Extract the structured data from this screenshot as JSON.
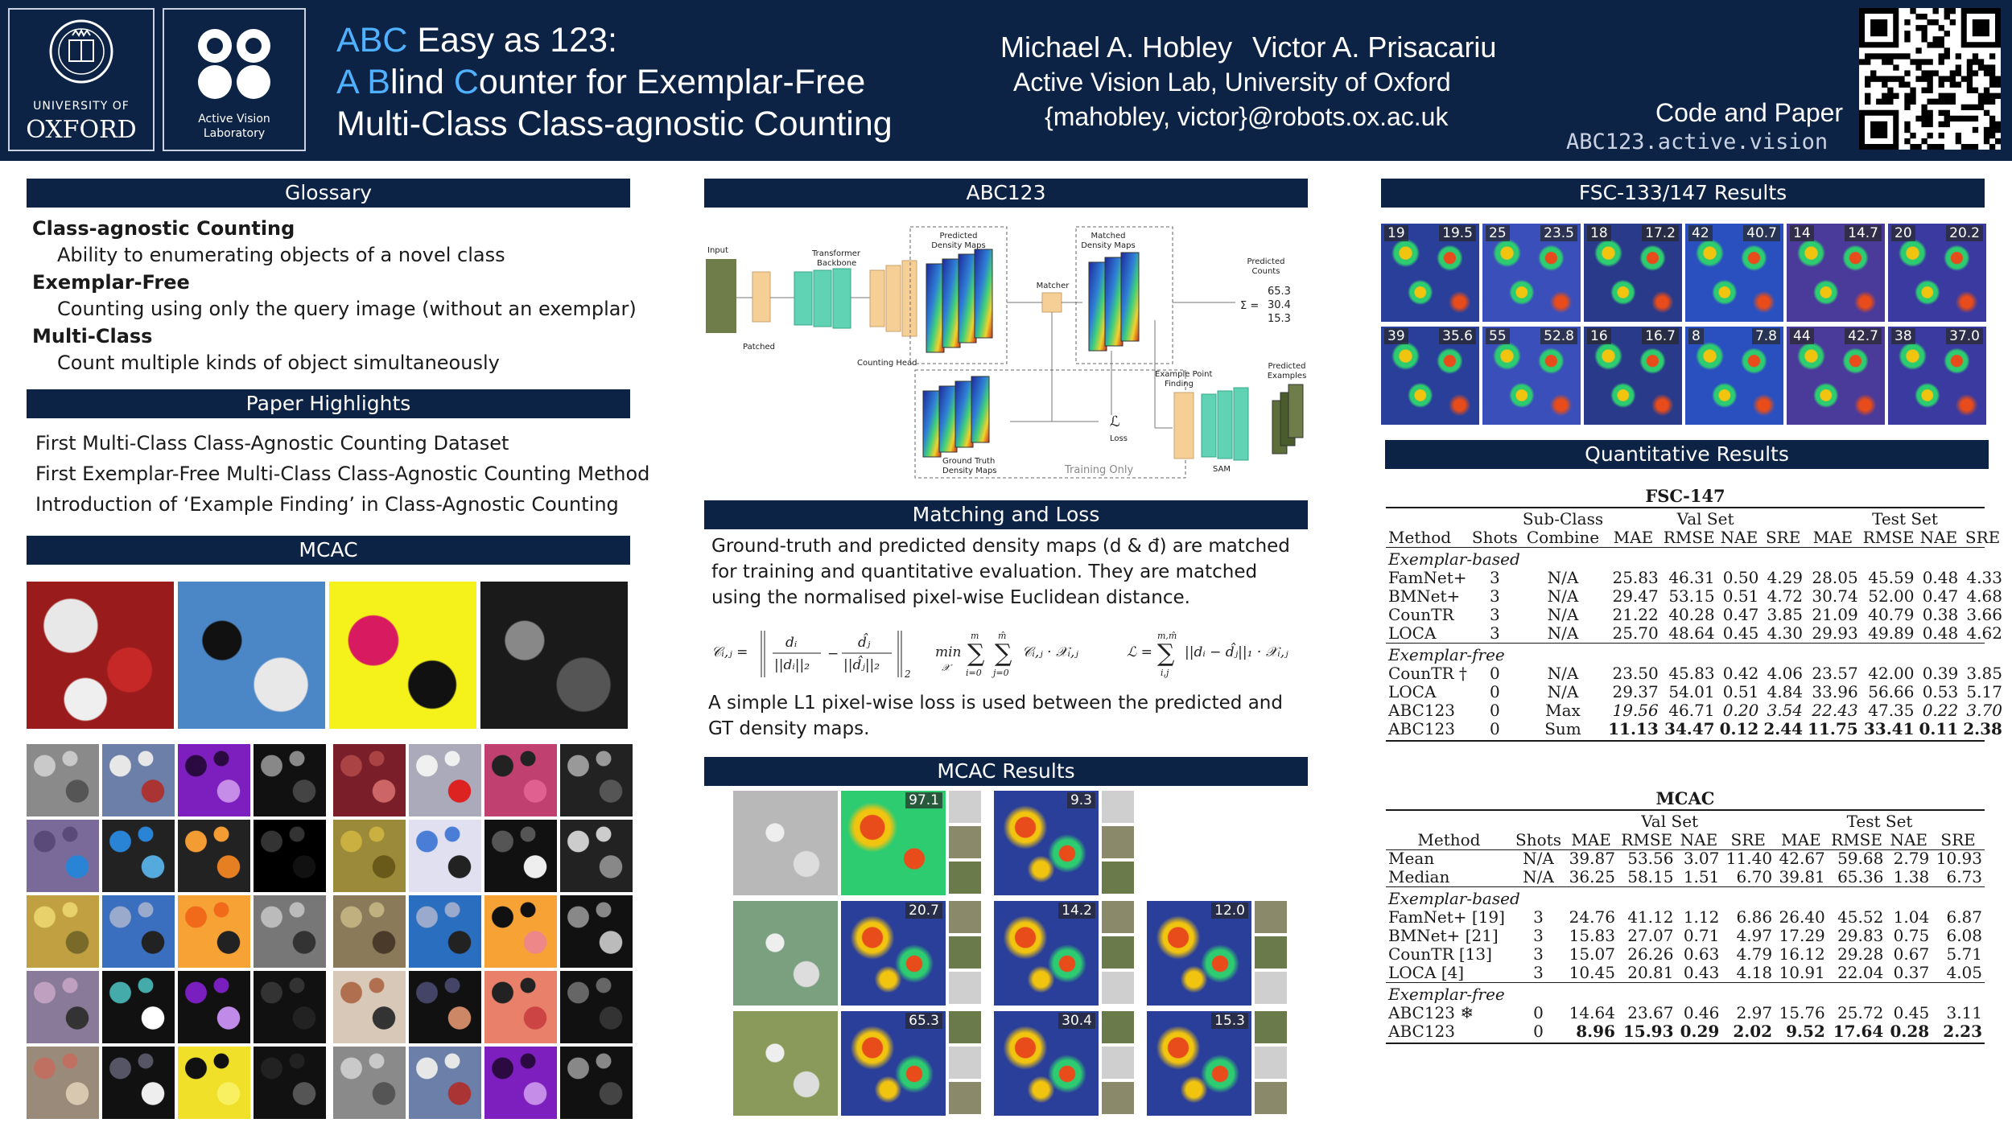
{
  "header": {
    "oxford_small": "UNIVERSITY OF",
    "oxford_big": "OXFORD",
    "avl_line1": "Active Vision",
    "avl_line2": "Laboratory",
    "title_l1_a": "ABC",
    "title_l1_b": " Easy as 123:",
    "title_l2_a": "A",
    "title_l2_b": " B",
    "title_l2_c": "lind ",
    "title_l2_d": "C",
    "title_l2_e": "ounter for Exemplar-Free",
    "title_l3": "Multi-Class Class-agnostic Counting",
    "author1": "Michael A. Hobley",
    "author2": "Victor A. Prisacariu",
    "affiliation": "Active Vision Lab, University of Oxford",
    "email": "{mahobley, victor}@robots.ox.ac.uk",
    "code_label": "Code and Paper",
    "url": "ABC123.active.vision"
  },
  "glossary": {
    "title": "Glossary",
    "items": [
      {
        "term": "Class-agnostic Counting",
        "def": "Ability to enumerating objects of a novel class"
      },
      {
        "term": "Exemplar-Free",
        "def": "Counting using only the query image (without an exemplar)"
      },
      {
        "term": "Multi-Class",
        "def": "Count multiple kinds of object simultaneously"
      }
    ]
  },
  "highlights": {
    "title": "Paper Highlights",
    "items": [
      "First Multi-Class Class-Agnostic Counting Dataset",
      "First Exemplar-Free Multi-Class Class-Agnostic Counting Method",
      "Introduction of ‘Example Finding’ in Class-Agnostic Counting"
    ]
  },
  "mcac": {
    "title": "MCAC"
  },
  "abc123": {
    "title": "ABC123",
    "diagram": {
      "input": "Input",
      "patched": "Patched",
      "transformer": "Transformer",
      "backbone": "Backbone",
      "counting_head": "Counting Head",
      "pred_maps_1": "Predicted",
      "pred_maps_2": "Density Maps",
      "matcher": "Matcher",
      "matched_1": "Matched",
      "matched_2": "Density Maps",
      "pred_counts_1": "Predicted",
      "pred_counts_2": "Counts",
      "counts": [
        "65.3",
        "30.4",
        "15.3"
      ],
      "sigma": "Σ =",
      "loss_sym": "ℒ",
      "loss": "Loss",
      "gt_1": "Ground Truth",
      "gt_2": "Density Maps",
      "training_only": "Training Only",
      "example_finding_1": "Example Point",
      "example_finding_2": "Finding",
      "sam": "SAM",
      "pred_examples_1": "Predicted",
      "pred_examples_2": "Examples"
    }
  },
  "matching": {
    "title": "Matching and Loss",
    "para1": "Ground-truth and predicted density maps (d & đ) are matched for training and quantitative evaluation. They are matched using the normalised pixel-wise Euclidean distance.",
    "para2": "A simple L1 pixel-wise loss is used between the predicted and GT density maps."
  },
  "mcac_results": {
    "title": "MCAC Results",
    "rows": [
      [
        "97.1",
        "9.3"
      ],
      [
        "20.7",
        "14.2",
        "12.0"
      ],
      [
        "65.3",
        "30.4",
        "15.3"
      ]
    ]
  },
  "fsc_results": {
    "title": "FSC-133/147 Results",
    "tiles": [
      {
        "gt": "19",
        "pred": "19.5"
      },
      {
        "gt": "25",
        "pred": "23.5"
      },
      {
        "gt": "18",
        "pred": "17.2"
      },
      {
        "gt": "42",
        "pred": "40.7"
      },
      {
        "gt": "14",
        "pred": "14.7"
      },
      {
        "gt": "20",
        "pred": "20.2"
      },
      {
        "gt": "39",
        "pred": "35.6"
      },
      {
        "gt": "55",
        "pred": "52.8"
      },
      {
        "gt": "16",
        "pred": "16.7"
      },
      {
        "gt": "8",
        "pred": "7.8"
      },
      {
        "gt": "44",
        "pred": "42.7"
      },
      {
        "gt": "38",
        "pred": "37.0"
      }
    ]
  },
  "quant": {
    "title": "Quantitative Results",
    "fsc": {
      "caption": "FSC-147",
      "h_subclass1": "Sub-Class",
      "h_subclass2": "Combine",
      "val": "Val Set",
      "test": "Test Set",
      "cols": [
        "Method",
        "Shots",
        "Combine",
        "MAE",
        "RMSE",
        "NAE",
        "SRE",
        "MAE",
        "RMSE",
        "NAE",
        "SRE"
      ],
      "group1": "Exemplar-based",
      "rows1": [
        [
          "FamNet+",
          "3",
          "N/A",
          "25.83",
          "46.31",
          "0.50",
          "4.29",
          "28.05",
          "45.59",
          "0.48",
          "4.33"
        ],
        [
          "BMNet+",
          "3",
          "N/A",
          "29.47",
          "53.15",
          "0.51",
          "4.72",
          "30.74",
          "52.00",
          "0.47",
          "4.68"
        ],
        [
          "CounTR",
          "3",
          "N/A",
          "21.22",
          "40.28",
          "0.47",
          "3.85",
          "21.09",
          "40.79",
          "0.38",
          "3.66"
        ],
        [
          "LOCA",
          "3",
          "N/A",
          "25.70",
          "48.64",
          "0.45",
          "4.30",
          "29.93",
          "49.89",
          "0.48",
          "4.62"
        ]
      ],
      "group2": "Exemplar-free",
      "rows2": [
        [
          "CounTR †",
          "0",
          "N/A",
          "23.50",
          "45.83",
          "0.42",
          "4.06",
          "23.57",
          "42.00",
          "0.39",
          "3.85"
        ],
        [
          "LOCA",
          "0",
          "N/A",
          "29.37",
          "54.01",
          "0.51",
          "4.84",
          "33.96",
          "56.66",
          "0.53",
          "5.17"
        ],
        [
          "ABC123",
          "0",
          "Max",
          "19.56",
          "46.71",
          "0.20",
          "3.54",
          "22.43",
          "47.35",
          "0.22",
          "3.70"
        ],
        [
          "ABC123",
          "0",
          "Sum",
          "11.13",
          "34.47",
          "0.12",
          "2.44",
          "11.75",
          "33.41",
          "0.11",
          "2.38"
        ]
      ]
    },
    "mcac": {
      "caption": "MCAC",
      "val": "Val Set",
      "test": "Test Set",
      "cols": [
        "Method",
        "Shots",
        "MAE",
        "RMSE",
        "NAE",
        "SRE",
        "MAE",
        "RMSE",
        "NAE",
        "SRE"
      ],
      "rows0": [
        [
          "Mean",
          "N/A",
          "39.87",
          "53.56",
          "3.07",
          "11.40",
          "42.67",
          "59.68",
          "2.79",
          "10.93"
        ],
        [
          "Median",
          "N/A",
          "36.25",
          "58.15",
          "1.51",
          "6.70",
          "39.81",
          "65.36",
          "1.38",
          "6.73"
        ]
      ],
      "group1": "Exemplar-based",
      "rows1": [
        [
          "FamNet+ [19]",
          "3",
          "24.76",
          "41.12",
          "1.12",
          "6.86",
          "26.40",
          "45.52",
          "1.04",
          "6.87"
        ],
        [
          "BMNet+ [21]",
          "3",
          "15.83",
          "27.07",
          "0.71",
          "4.97",
          "17.29",
          "29.83",
          "0.75",
          "6.08"
        ],
        [
          "CounTR [13]",
          "3",
          "15.07",
          "26.26",
          "0.63",
          "4.79",
          "16.12",
          "29.28",
          "0.67",
          "5.71"
        ],
        [
          "LOCA [4]",
          "3",
          "10.45",
          "20.81",
          "0.43",
          "4.18",
          "10.91",
          "22.04",
          "0.37",
          "4.05"
        ]
      ],
      "group2": "Exemplar-free",
      "rows2": [
        [
          "ABC123 ❄",
          "0",
          "14.64",
          "23.67",
          "0.46",
          "2.97",
          "15.76",
          "25.72",
          "0.45",
          "3.11"
        ],
        [
          "ABC123",
          "0",
          "8.96",
          "15.93",
          "0.29",
          "2.02",
          "9.52",
          "17.64",
          "0.28",
          "2.23"
        ]
      ]
    }
  }
}
